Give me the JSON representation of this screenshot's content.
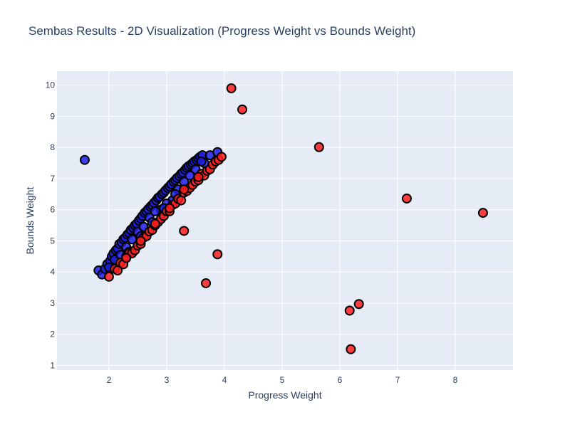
{
  "chart_data": {
    "type": "scatter",
    "title": "Sembas Results - 2D Visualization (Progress Weight vs Bounds Weight)",
    "xlabel": "Progress Weight",
    "ylabel": "Bounds Weight",
    "xlim": [
      1.1,
      9.0
    ],
    "ylim": [
      0.85,
      10.45
    ],
    "xticks": [
      2,
      3,
      4,
      5,
      6,
      7,
      8
    ],
    "yticks": [
      1,
      2,
      3,
      4,
      5,
      6,
      7,
      8,
      9,
      10
    ],
    "grid": true,
    "legend": "none",
    "colors": {
      "background": "#e5ecf6",
      "grid": "#ffffff",
      "text": "#2a3f5f",
      "marker_outline": "#000000"
    },
    "series": [
      {
        "color": "#1f1fe6",
        "x": [
          1.58,
          1.82,
          1.88,
          1.93,
          1.97,
          2.02,
          2.05,
          2.08,
          2.12,
          2.15,
          2.18,
          2.22,
          2.25,
          2.28,
          2.32,
          2.35,
          2.38,
          2.42,
          2.45,
          2.48,
          2.52,
          2.55,
          2.58,
          2.62,
          2.65,
          2.68,
          2.72,
          2.75,
          2.78,
          2.82,
          2.85,
          2.88,
          2.92,
          2.95,
          2.98,
          3.02,
          3.05,
          3.08,
          3.12,
          3.15,
          3.18,
          3.22,
          3.25,
          3.28,
          3.32,
          3.35,
          3.38,
          3.42,
          3.45,
          3.48,
          3.52,
          3.55,
          3.58,
          3.62,
          3.65,
          3.75,
          3.88,
          2.1,
          2.3,
          2.5,
          2.7,
          2.9,
          3.1,
          3.3,
          3.5,
          2.2,
          2.4,
          2.6,
          2.8,
          3.0,
          3.2,
          3.4,
          3.6,
          2.0,
          2.35,
          2.55,
          2.75,
          2.95,
          3.15
        ],
        "y": [
          7.6,
          4.05,
          3.92,
          4.1,
          4.25,
          4.35,
          4.5,
          4.6,
          4.7,
          4.75,
          4.9,
          4.95,
          5.05,
          5.1,
          5.2,
          5.25,
          5.35,
          5.42,
          5.5,
          5.55,
          5.65,
          5.72,
          5.8,
          5.9,
          5.95,
          6.02,
          6.1,
          6.15,
          6.22,
          6.3,
          6.38,
          6.42,
          6.5,
          6.55,
          6.62,
          6.7,
          6.75,
          6.82,
          6.9,
          6.95,
          7.02,
          7.08,
          7.15,
          7.2,
          7.28,
          7.35,
          7.4,
          7.45,
          7.5,
          7.55,
          7.6,
          7.65,
          7.7,
          7.75,
          7.5,
          7.75,
          7.85,
          4.4,
          4.8,
          5.3,
          5.75,
          6.0,
          6.3,
          6.9,
          7.3,
          4.55,
          5.05,
          5.45,
          5.95,
          6.2,
          6.65,
          7.1,
          7.55,
          4.15,
          4.65,
          5.15,
          5.6,
          6.05,
          6.5
        ]
      },
      {
        "color": "#ff1f1f",
        "x": [
          2.0,
          2.1,
          2.15,
          2.2,
          2.25,
          2.3,
          2.35,
          2.4,
          2.45,
          2.5,
          2.55,
          2.6,
          2.65,
          2.7,
          2.75,
          2.8,
          2.85,
          2.9,
          2.95,
          3.0,
          3.05,
          3.1,
          3.15,
          3.2,
          3.25,
          3.3,
          3.35,
          3.4,
          3.45,
          3.5,
          3.55,
          3.6,
          3.65,
          3.7,
          3.75,
          3.8,
          3.85,
          3.9,
          3.95,
          2.3,
          2.55,
          2.8,
          3.05,
          3.3,
          3.55,
          3.3,
          3.68,
          3.88,
          4.12,
          4.31,
          5.64,
          6.17,
          6.19,
          6.33,
          7.16,
          8.48
        ],
        "y": [
          3.85,
          4.1,
          4.05,
          4.3,
          4.25,
          4.5,
          4.6,
          4.6,
          4.7,
          4.85,
          4.9,
          5.1,
          5.15,
          5.3,
          5.35,
          5.5,
          5.6,
          5.7,
          5.8,
          5.95,
          5.95,
          6.15,
          6.2,
          6.35,
          6.3,
          6.55,
          6.6,
          6.7,
          6.8,
          6.9,
          6.95,
          7.15,
          7.1,
          7.25,
          7.3,
          7.45,
          7.55,
          7.6,
          7.7,
          4.45,
          5.0,
          5.55,
          6.05,
          6.65,
          7.05,
          5.32,
          3.64,
          4.57,
          9.9,
          9.22,
          8.01,
          2.76,
          1.52,
          2.97,
          6.36,
          5.9
        ]
      }
    ]
  }
}
